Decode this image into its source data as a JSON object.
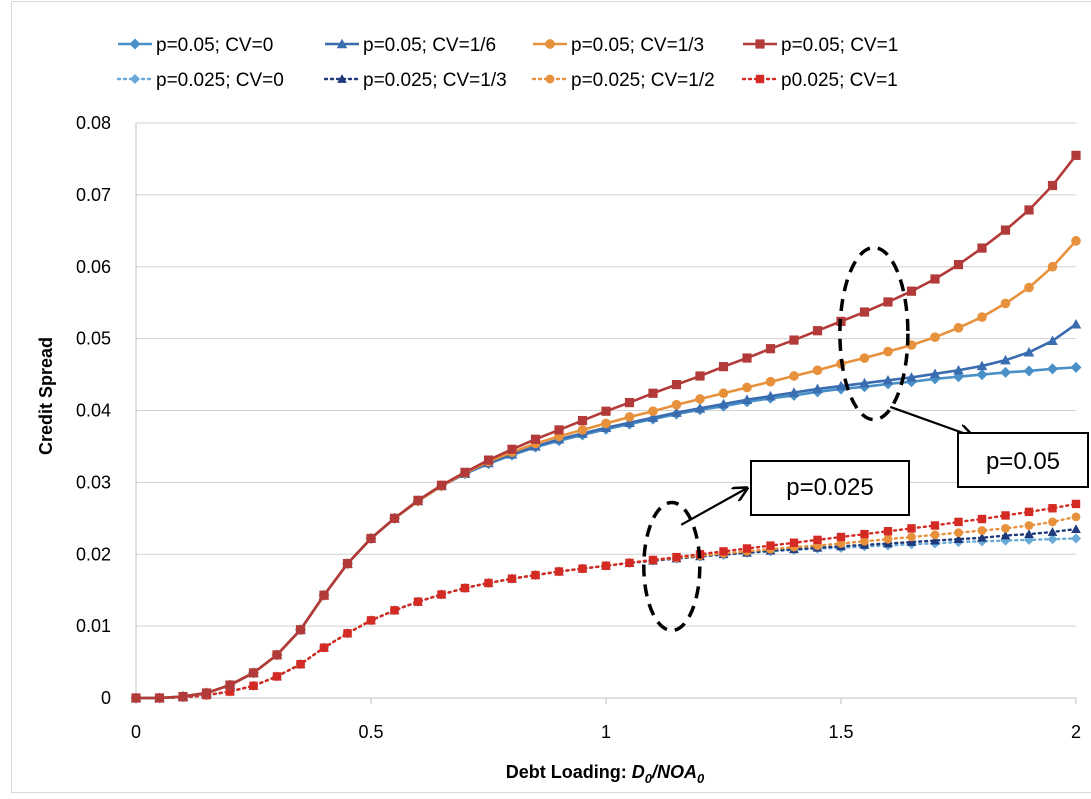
{
  "chart_data": {
    "type": "line",
    "title": "",
    "xlabel": "Debt Loading: ",
    "xlabel_italic": "D",
    "xlabel_sub1": "0",
    "xlabel_sep": "/NOA",
    "xlabel_sub2": "0",
    "ylabel": "Credit Spread",
    "xlim": [
      0,
      2
    ],
    "ylim": [
      0,
      0.08
    ],
    "xticks": [
      0,
      0.5,
      1,
      1.5,
      2
    ],
    "xtick_labels": [
      "0",
      "0.5",
      "1",
      "1.5",
      "2"
    ],
    "yticks": [
      0,
      0.01,
      0.02,
      0.03,
      0.04,
      0.05,
      0.06,
      0.07,
      0.08
    ],
    "ytick_labels": [
      "0",
      "0.01",
      "0.02",
      "0.03",
      "0.04",
      "0.05",
      "0.06",
      "0.07",
      "0.08"
    ],
    "grid": "horizontal",
    "legend_position": "top",
    "x": [
      0,
      0.05,
      0.1,
      0.15,
      0.2,
      0.25,
      0.3,
      0.35,
      0.4,
      0.45,
      0.5,
      0.55,
      0.6,
      0.65,
      0.7,
      0.75,
      0.8,
      0.85,
      0.9,
      0.95,
      1.0,
      1.05,
      1.1,
      1.15,
      1.2,
      1.25,
      1.3,
      1.35,
      1.4,
      1.45,
      1.5,
      1.55,
      1.6,
      1.65,
      1.7,
      1.75,
      1.8,
      1.85,
      1.9,
      1.95,
      2.0
    ],
    "series": [
      {
        "name": "p=0.05; CV=0",
        "color": "#4a90c8",
        "dash": "solid",
        "marker": "diamond",
        "values": [
          0,
          0,
          0.0002,
          0.0007,
          0.0018,
          0.0035,
          0.006,
          0.0095,
          0.0143,
          0.0187,
          0.0222,
          0.025,
          0.0274,
          0.0295,
          0.0312,
          0.0326,
          0.0338,
          0.0349,
          0.0358,
          0.0366,
          0.0374,
          0.0381,
          0.0388,
          0.0395,
          0.0401,
          0.0406,
          0.0412,
          0.0417,
          0.0421,
          0.0426,
          0.043,
          0.0433,
          0.0437,
          0.044,
          0.0444,
          0.0447,
          0.045,
          0.0453,
          0.0455,
          0.0458,
          0.046
        ]
      },
      {
        "name": "p=0.05; CV=1/6",
        "color": "#3a6cb0",
        "dash": "solid",
        "marker": "triangle",
        "values": [
          0,
          0,
          0.0002,
          0.0007,
          0.0018,
          0.0035,
          0.006,
          0.0095,
          0.0143,
          0.0187,
          0.0222,
          0.025,
          0.0274,
          0.0295,
          0.0312,
          0.0327,
          0.0339,
          0.035,
          0.036,
          0.0368,
          0.0376,
          0.0383,
          0.039,
          0.0397,
          0.0403,
          0.0409,
          0.0415,
          0.042,
          0.0425,
          0.043,
          0.0434,
          0.0438,
          0.0442,
          0.0446,
          0.0451,
          0.0456,
          0.0462,
          0.047,
          0.0481,
          0.0497,
          0.052
        ]
      },
      {
        "name": "p=0.05; CV=1/3",
        "color": "#e8913c",
        "dash": "solid",
        "marker": "circle",
        "values": [
          0,
          0,
          0.0002,
          0.0007,
          0.0018,
          0.0035,
          0.006,
          0.0095,
          0.0143,
          0.0187,
          0.0222,
          0.025,
          0.0274,
          0.0295,
          0.0313,
          0.0329,
          0.0342,
          0.0354,
          0.0364,
          0.0373,
          0.0382,
          0.0391,
          0.0399,
          0.0408,
          0.0416,
          0.0424,
          0.0432,
          0.044,
          0.0448,
          0.0456,
          0.0465,
          0.0473,
          0.0482,
          0.0491,
          0.0502,
          0.0515,
          0.053,
          0.0549,
          0.0571,
          0.06,
          0.0636
        ]
      },
      {
        "name": "p=0.05; CV=1",
        "color": "#b23a38",
        "dash": "solid",
        "marker": "square",
        "values": [
          0,
          0,
          0.0002,
          0.0007,
          0.0018,
          0.0035,
          0.006,
          0.0095,
          0.0143,
          0.0187,
          0.0222,
          0.025,
          0.0275,
          0.0296,
          0.0314,
          0.0331,
          0.0346,
          0.036,
          0.0373,
          0.0386,
          0.0399,
          0.0411,
          0.0424,
          0.0436,
          0.0448,
          0.0461,
          0.0473,
          0.0486,
          0.0498,
          0.0511,
          0.0524,
          0.0537,
          0.0551,
          0.0566,
          0.0583,
          0.0603,
          0.0626,
          0.0651,
          0.0679,
          0.0713,
          0.0755
        ]
      },
      {
        "name": "p=0.025; CV=0",
        "color": "#6aaad8",
        "dash": "dotted",
        "marker": "diamond",
        "values": [
          0,
          0,
          0.0001,
          0.0004,
          0.0009,
          0.0017,
          0.003,
          0.0047,
          0.007,
          0.009,
          0.0108,
          0.0122,
          0.0134,
          0.0144,
          0.0153,
          0.016,
          0.0166,
          0.0171,
          0.0176,
          0.018,
          0.0184,
          0.0188,
          0.0191,
          0.0194,
          0.0197,
          0.0199,
          0.0202,
          0.0204,
          0.0206,
          0.0208,
          0.0209,
          0.0211,
          0.0212,
          0.0214,
          0.0215,
          0.0217,
          0.0218,
          0.0219,
          0.022,
          0.0221,
          0.0222
        ]
      },
      {
        "name": "p=0.025; CV=1/3",
        "color": "#1f3a7a",
        "dash": "dotted",
        "marker": "triangle",
        "values": [
          0,
          0,
          0.0001,
          0.0004,
          0.0009,
          0.0017,
          0.003,
          0.0047,
          0.007,
          0.009,
          0.0108,
          0.0122,
          0.0134,
          0.0144,
          0.0153,
          0.016,
          0.0166,
          0.0171,
          0.0176,
          0.018,
          0.0184,
          0.0188,
          0.0191,
          0.0194,
          0.0197,
          0.02,
          0.0202,
          0.0205,
          0.0207,
          0.0209,
          0.0211,
          0.0213,
          0.0215,
          0.0217,
          0.0219,
          0.0221,
          0.0223,
          0.0226,
          0.0228,
          0.0231,
          0.0235
        ]
      },
      {
        "name": "p=0.025; CV=1/2",
        "color": "#e8913c",
        "dash": "dotted",
        "marker": "circle",
        "values": [
          0,
          0,
          0.0001,
          0.0004,
          0.0009,
          0.0017,
          0.003,
          0.0047,
          0.007,
          0.009,
          0.0108,
          0.0122,
          0.0134,
          0.0144,
          0.0153,
          0.016,
          0.0166,
          0.0171,
          0.0176,
          0.018,
          0.0184,
          0.0188,
          0.0192,
          0.0195,
          0.0198,
          0.0201,
          0.0204,
          0.0207,
          0.021,
          0.0212,
          0.0215,
          0.0218,
          0.0221,
          0.0224,
          0.0227,
          0.023,
          0.0233,
          0.0236,
          0.024,
          0.0245,
          0.0252
        ]
      },
      {
        "name": "p0.025; CV=1",
        "color": "#d42a24",
        "dash": "dotted",
        "marker": "square",
        "values": [
          0,
          0,
          0.0001,
          0.0004,
          0.0009,
          0.0017,
          0.003,
          0.0047,
          0.007,
          0.009,
          0.0108,
          0.0122,
          0.0134,
          0.0144,
          0.0153,
          0.016,
          0.0166,
          0.0171,
          0.0176,
          0.018,
          0.0184,
          0.0188,
          0.0192,
          0.0196,
          0.02,
          0.0204,
          0.0208,
          0.0212,
          0.0216,
          0.022,
          0.0224,
          0.0228,
          0.0232,
          0.0236,
          0.024,
          0.0245,
          0.0249,
          0.0254,
          0.0259,
          0.0264,
          0.027
        ]
      }
    ],
    "annotations": [
      {
        "label": "p=0.05",
        "ellipse_center": [
          1.57,
          0.0507
        ]
      },
      {
        "label": "p=0.025",
        "ellipse_center": [
          1.14,
          0.0183
        ]
      }
    ]
  }
}
